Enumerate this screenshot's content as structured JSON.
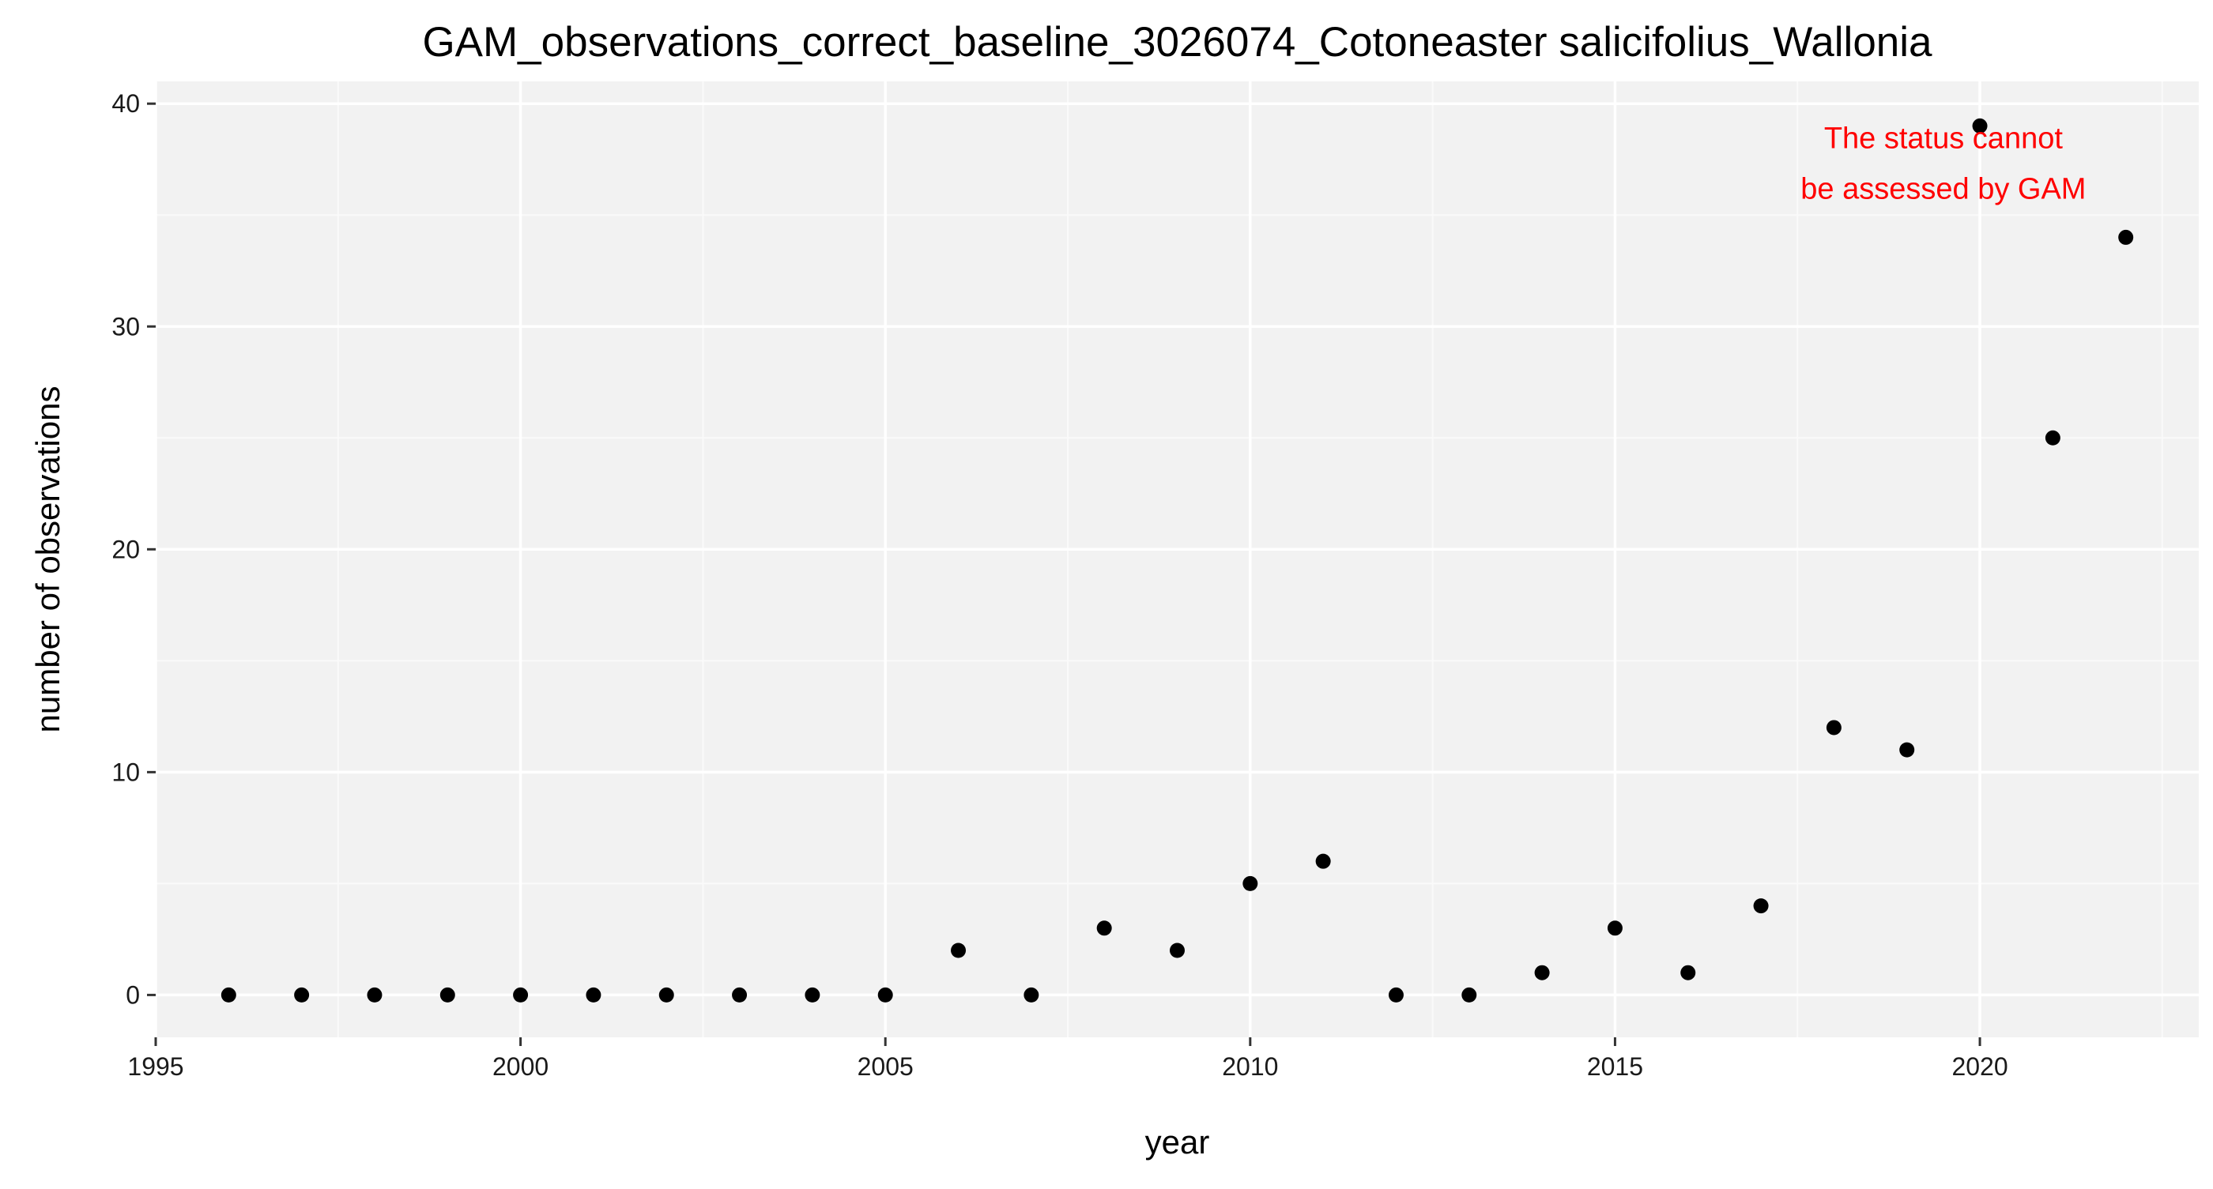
{
  "chart_data": {
    "type": "scatter",
    "title": "GAM_observations_correct_baseline_3026074_Cotoneaster salicifolius_Wallonia",
    "xlabel": "year",
    "ylabel": "number of observations",
    "xlim": [
      1995,
      2023
    ],
    "ylim": [
      -1.9,
      41.0
    ],
    "x_ticks": [
      1995,
      2000,
      2005,
      2010,
      2015,
      2020
    ],
    "y_ticks": [
      0,
      10,
      20,
      30,
      40
    ],
    "x_minor_ticks": [
      1997.5,
      2002.5,
      2007.5,
      2012.5,
      2017.5,
      2022.5
    ],
    "y_minor_ticks": [
      5,
      15,
      25,
      35
    ],
    "grid": true,
    "legend": "none",
    "colors": {
      "panel_background": "#f2f2f2",
      "grid_major": "#ffffff",
      "grid_minor": "#fafafa",
      "point": "#000000",
      "annotation": "#ff0000"
    },
    "series": [
      {
        "x": [
          1996,
          1997,
          1998,
          1999,
          2000,
          2001,
          2002,
          2003,
          2004,
          2005,
          2006,
          2007,
          2008,
          2009,
          2010,
          2011,
          2012,
          2013,
          2014,
          2015,
          2016,
          2017,
          2018,
          2019,
          2020,
          2021,
          2022
        ],
        "y": [
          0,
          0,
          0,
          0,
          0,
          0,
          0,
          0,
          0,
          0,
          2,
          0,
          3,
          2,
          5,
          6,
          0,
          0,
          1,
          3,
          1,
          4,
          12,
          11,
          39,
          25,
          34
        ]
      }
    ],
    "annotations": [
      {
        "lines": [
          "The status cannot",
          "be assessed by GAM"
        ],
        "x": 2019.5,
        "y": 39,
        "align": "center"
      }
    ]
  }
}
